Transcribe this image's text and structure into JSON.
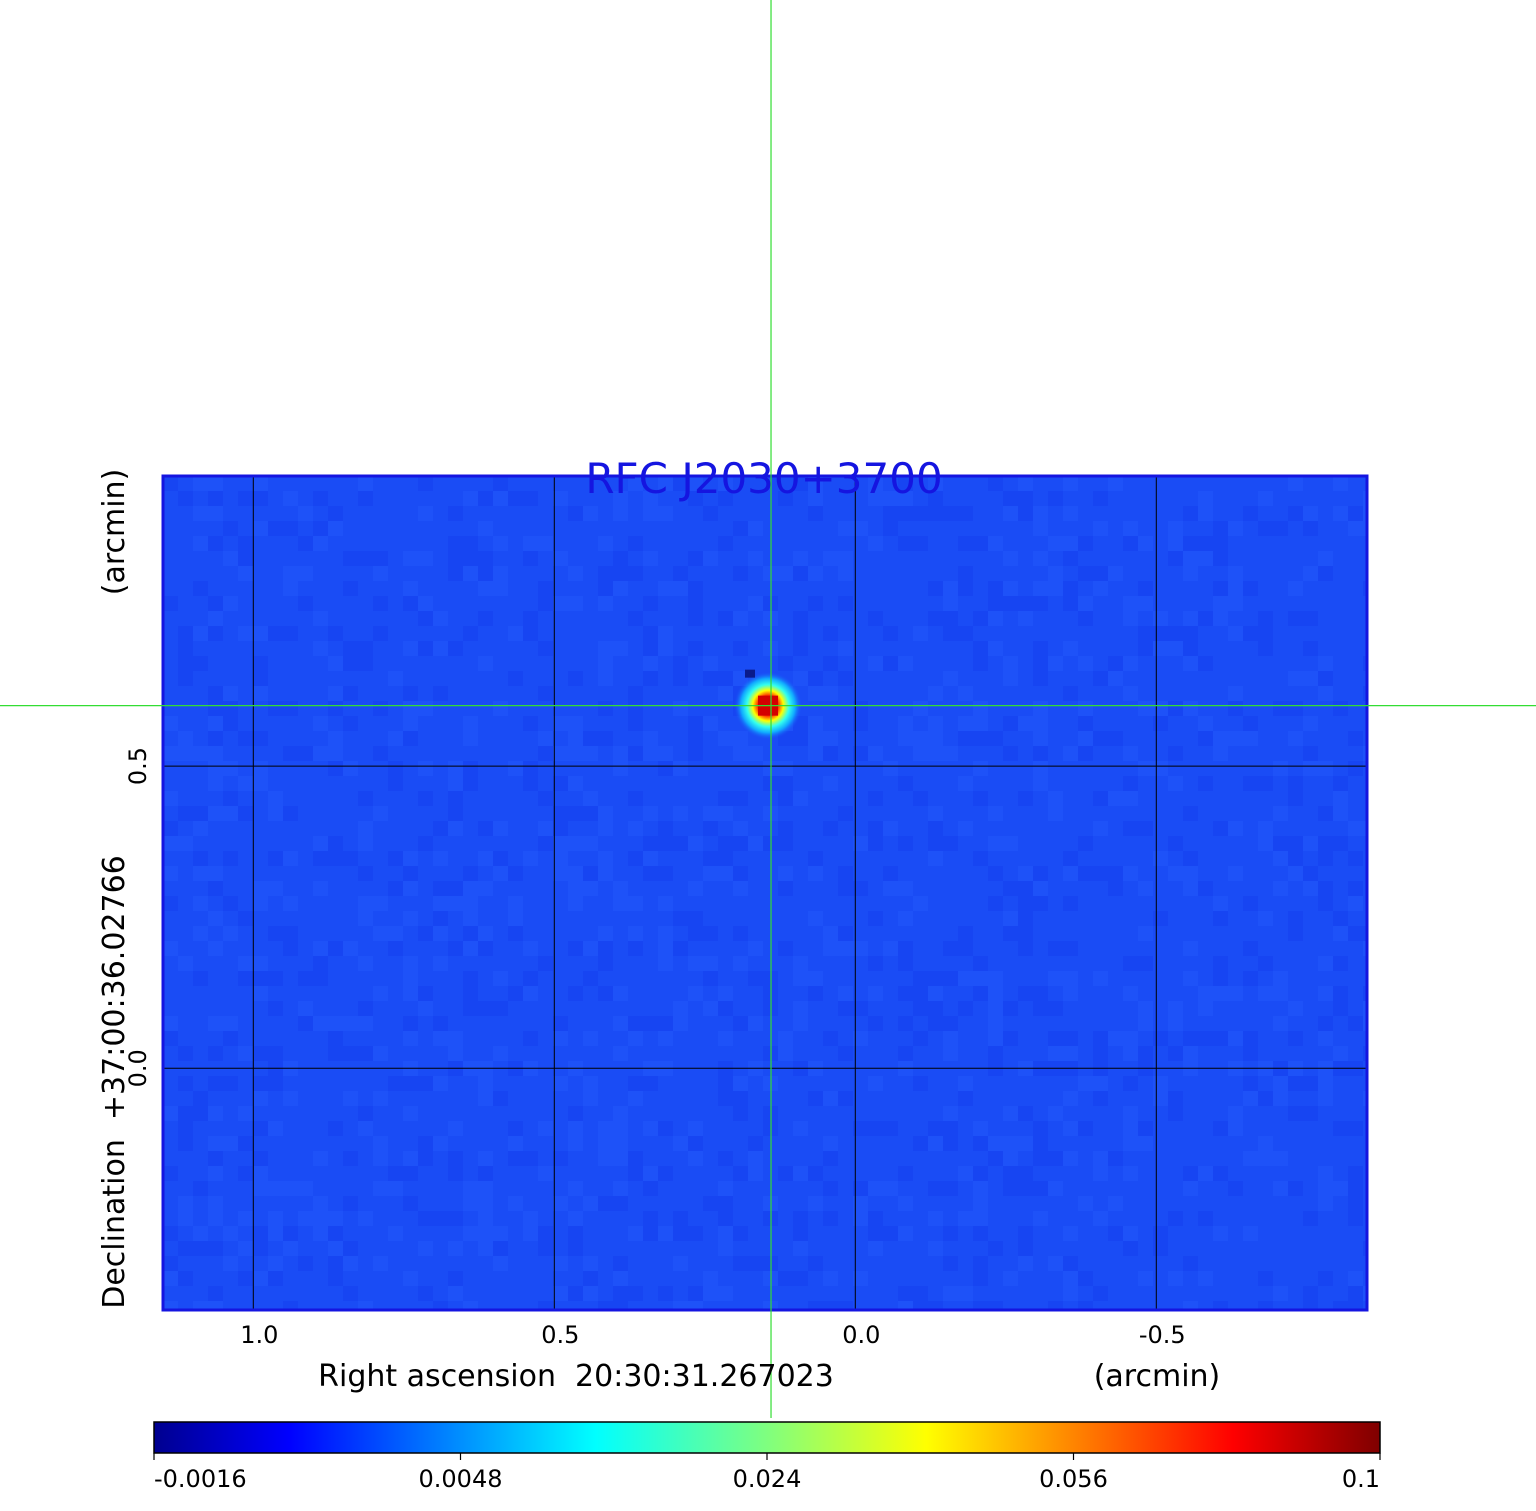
{
  "chart_data": {
    "type": "heatmap",
    "title": "RFC J2030+3700",
    "xlabel": "Right ascension  20:30:31.267023",
    "xunit": "(arcmin)",
    "ylabel": "Declination  +37:00:36.02766",
    "yunit": "(arcmin)",
    "x_ticks": [
      1.0,
      0.5,
      0.0,
      -0.5
    ],
    "x_tick_labels": [
      "1.0",
      "0.5",
      "0.0",
      "-0.5"
    ],
    "y_ticks": [
      0.5,
      0.0
    ],
    "y_tick_labels": [
      "0.5",
      "0.0"
    ],
    "xlim": [
      1.15,
      -0.85
    ],
    "ylim": [
      -0.4,
      0.98
    ],
    "grid": true,
    "crosshair": {
      "x": 0.14,
      "y": 0.6
    },
    "source": {
      "x": 0.145,
      "y": 0.6,
      "peak": 0.1
    },
    "background_level": 0.0,
    "colorbar": {
      "colormap": "jet",
      "tick_labels": [
        "-0.0016",
        "0.0048",
        "0.024",
        "0.056",
        "0.1"
      ],
      "min": -0.0016,
      "max": 0.1
    }
  }
}
